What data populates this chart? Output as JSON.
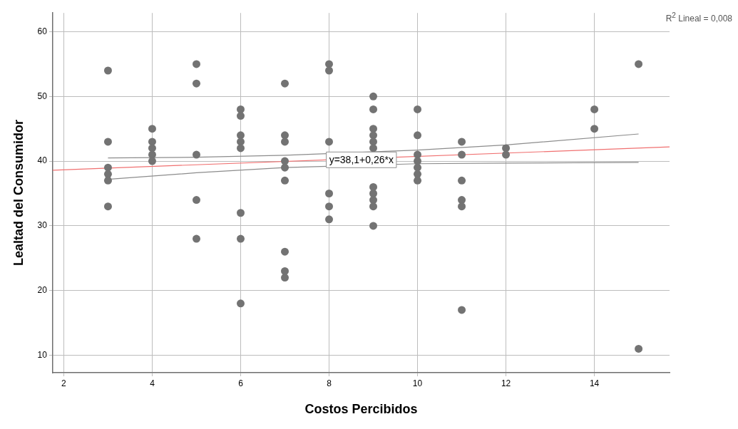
{
  "chart_data": {
    "type": "scatter",
    "xlabel": "Costos Percibidos",
    "ylabel": "Lealtad del Consumidor",
    "xlim": [
      1.75,
      15.7
    ],
    "ylim": [
      7.3,
      62.9
    ],
    "xticks": [
      2,
      4,
      6,
      8,
      10,
      12,
      14
    ],
    "yticks": [
      10,
      20,
      30,
      40,
      50,
      60
    ],
    "grid": true,
    "legend": false,
    "marker": "circle",
    "annotations": [
      {
        "text": "y=38,1+0,26*x",
        "x": 8.73,
        "y": 40.2
      },
      "R$^{2}$ Lineal = 0,008"
    ],
    "series": [
      {
        "color": "#737373",
        "x": [
          3,
          3,
          3,
          3,
          3,
          3,
          4,
          4,
          4,
          4,
          4,
          5,
          5,
          5,
          5,
          5,
          6,
          6,
          6,
          6,
          6,
          6,
          6,
          6,
          7,
          7,
          7,
          7,
          7,
          7,
          7,
          7,
          7,
          8,
          8,
          8,
          8,
          8,
          8,
          9,
          9,
          9,
          9,
          9,
          9,
          9,
          9,
          9,
          9,
          9,
          10,
          10,
          10,
          10,
          10,
          10,
          10,
          11,
          11,
          11,
          11,
          11,
          11,
          12,
          12,
          14,
          14,
          15,
          15
        ],
        "values": [
          54,
          43,
          39,
          38,
          37,
          33,
          45,
          43,
          42,
          41,
          40,
          55,
          52,
          41,
          34,
          28,
          48,
          47,
          44,
          43,
          42,
          32,
          28,
          18,
          52,
          44,
          43,
          40,
          39,
          37,
          26,
          23,
          22,
          55,
          54,
          43,
          35,
          33,
          31,
          50,
          48,
          45,
          44,
          43,
          42,
          36,
          35,
          34,
          33,
          30,
          48,
          44,
          41,
          40,
          39,
          38,
          37,
          43,
          41,
          37,
          34,
          33,
          17,
          42,
          41,
          48,
          45,
          55,
          11
        ]
      },
      {
        "type": "line",
        "marker": "none",
        "color": "#f07070",
        "x": [
          1.75,
          15.7
        ],
        "values": [
          38.6,
          42.2
        ]
      },
      {
        "type": "line",
        "marker": "none",
        "color": "#8c8c8c",
        "x": [
          3,
          5,
          7,
          10,
          12,
          15
        ],
        "values": [
          40.5,
          40.6,
          40.9,
          41.7,
          42.5,
          44.2
        ]
      },
      {
        "type": "line",
        "marker": "none",
        "color": "#8c8c8c",
        "x": [
          3,
          5,
          7,
          10,
          12,
          15
        ],
        "values": [
          37.2,
          38.2,
          39.0,
          39.6,
          39.7,
          39.8
        ]
      }
    ]
  }
}
